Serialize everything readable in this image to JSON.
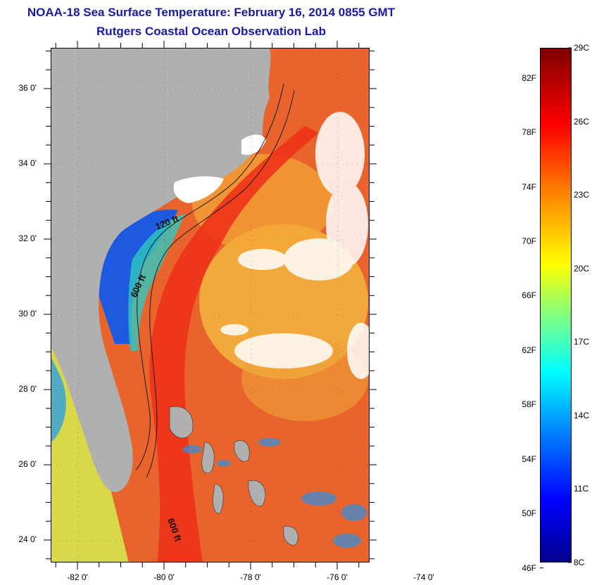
{
  "title_line1": "NOAA-18 Sea Surface Temperature:  February 16, 2014 0855 GMT",
  "title_line2": "Rutgers Coastal Ocean Observation Lab",
  "map": {
    "lat_labels": [
      {
        "text": "36 0'",
        "lat": 36
      },
      {
        "text": "34 0'",
        "lat": 34
      },
      {
        "text": "32 0'",
        "lat": 32
      },
      {
        "text": "30 0'",
        "lat": 30
      },
      {
        "text": "28 0'",
        "lat": 28
      },
      {
        "text": "26 0'",
        "lat": 26
      },
      {
        "text": "24 0'",
        "lat": 24
      }
    ],
    "lon_labels": [
      {
        "text": "-82 0'",
        "lon": -82
      },
      {
        "text": "-80 0'",
        "lon": -80
      },
      {
        "text": "-78 0'",
        "lon": -78
      },
      {
        "text": "-76 0'",
        "lon": -76
      },
      {
        "text": "-74 0'",
        "lon": -74
      }
    ],
    "contour_labels": [
      "120 ft",
      "600 ft",
      "600 ft"
    ],
    "colors": {
      "land": "#b0b0b0",
      "cloud": "#ffffff",
      "warm_ocean": "#e8542a",
      "gulf_stream": "#f03a1e",
      "shelf_cold": "#1e5ae0"
    }
  },
  "colorbar": {
    "fahrenheit": [
      "82F",
      "78F",
      "74F",
      "70F",
      "66F",
      "62F",
      "58F",
      "54F",
      "50F",
      "46F"
    ],
    "celsius": [
      "29C",
      "26C",
      "23C",
      "20C",
      "17C",
      "14C",
      "11C",
      "8C"
    ],
    "range_c": [
      8,
      29
    ]
  }
}
